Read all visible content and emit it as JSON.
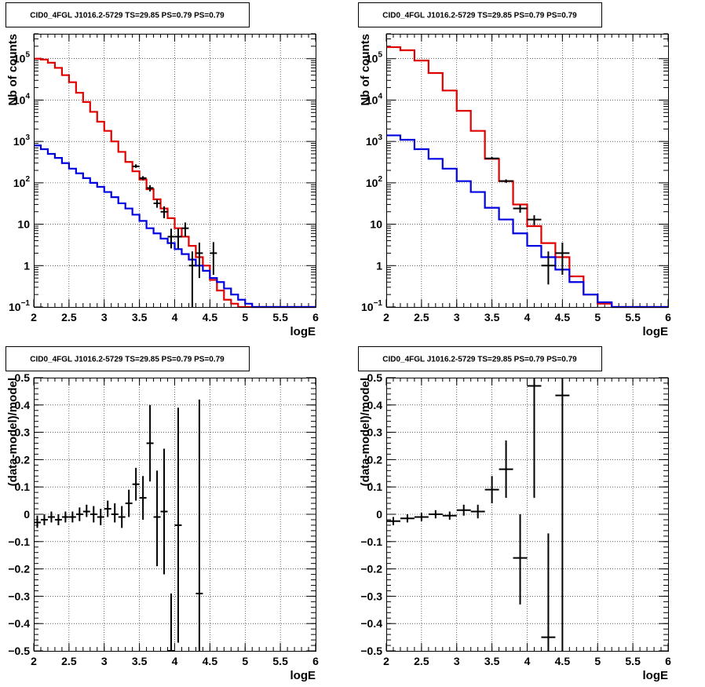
{
  "colors": {
    "model_total": "#e00000",
    "model_source": "#0000e0",
    "data": "#000000"
  },
  "chart_data": [
    {
      "panel": "top-left",
      "type": "line",
      "title": "CID0_4FGL J1016.2-5729 TS=29.85 PS=0.79 PS=0.79",
      "xlabel": "logE",
      "ylabel": "Nb of counts",
      "xlim": [
        2,
        6
      ],
      "ylim": [
        0.1,
        400000
      ],
      "yscale": "log",
      "grid": true,
      "xticks": [
        "2",
        "2.5",
        "3",
        "3.5",
        "4",
        "4.5",
        "5",
        "5.5",
        "6"
      ],
      "yticks": [
        {
          "v": 0.1,
          "base": "10",
          "exp": "−1"
        },
        {
          "v": 1,
          "base": "1",
          "exp": ""
        },
        {
          "v": 10,
          "base": "10",
          "exp": ""
        },
        {
          "v": 100,
          "base": "10",
          "exp": "2"
        },
        {
          "v": 1000,
          "base": "10",
          "exp": "3"
        },
        {
          "v": 10000,
          "base": "10",
          "exp": "4"
        },
        {
          "v": 100000,
          "base": "10",
          "exp": "5"
        }
      ],
      "bin_edges": [
        2.0,
        2.1,
        2.2,
        2.3,
        2.4,
        2.5,
        2.6,
        2.7,
        2.8,
        2.9,
        3.0,
        3.1,
        3.2,
        3.3,
        3.4,
        3.5,
        3.6,
        3.7,
        3.8,
        3.9,
        4.0,
        4.1,
        4.2,
        4.3,
        4.4,
        4.5,
        4.6,
        4.7,
        4.8,
        4.9,
        5.0,
        5.1,
        5.2,
        5.3,
        5.4,
        5.5,
        5.6,
        5.7,
        5.8,
        5.9,
        6.0
      ],
      "series": [
        {
          "role": "model_total",
          "values": [
            100000,
            95000,
            80000,
            60000,
            40000,
            27000,
            15000,
            9000,
            5200,
            3000,
            1800,
            1000,
            560,
            320,
            190,
            120,
            70,
            40,
            24,
            14,
            8,
            5,
            3,
            1.6,
            1.0,
            0.45,
            0.25,
            0.15,
            0.12,
            0.1,
            0.1,
            0.1,
            0.1,
            0.1,
            0.1,
            0.1,
            0.1,
            0.1,
            0.1,
            0.1
          ]
        },
        {
          "role": "model_source",
          "values": [
            800,
            650,
            500,
            400,
            300,
            220,
            170,
            130,
            100,
            80,
            60,
            45,
            32,
            24,
            17,
            12,
            8,
            6,
            4.5,
            3.5,
            2.5,
            1.9,
            1.4,
            1.0,
            0.75,
            0.5,
            0.4,
            0.28,
            0.2,
            0.15,
            0.12,
            0.1,
            0.1,
            0.1,
            0.1,
            0.1,
            0.1,
            0.1,
            0.1,
            0.1
          ]
        }
      ],
      "data_points": [
        {
          "x": 3.45,
          "y": 250,
          "ylo": 230,
          "yhi": 280,
          "xerr": 0.05
        },
        {
          "x": 3.55,
          "y": 130,
          "ylo": 115,
          "yhi": 145,
          "xerr": 0.05
        },
        {
          "x": 3.65,
          "y": 75,
          "ylo": 62,
          "yhi": 88,
          "xerr": 0.05
        },
        {
          "x": 3.75,
          "y": 32,
          "ylo": 25,
          "yhi": 40,
          "xerr": 0.05
        },
        {
          "x": 3.85,
          "y": 20,
          "ylo": 14,
          "yhi": 27,
          "xerr": 0.05
        },
        {
          "x": 3.95,
          "y": 5,
          "ylo": 2.6,
          "yhi": 7.8,
          "xerr": 0.05
        },
        {
          "x": 4.05,
          "y": 5,
          "ylo": 2.6,
          "yhi": 7.8,
          "xerr": 0.05
        },
        {
          "x": 4.15,
          "y": 8,
          "ylo": 5,
          "yhi": 11,
          "xerr": 0.05
        },
        {
          "x": 4.25,
          "y": 1,
          "ylo": 0.1,
          "yhi": 2.2,
          "xerr": 0.05
        },
        {
          "x": 4.35,
          "y": 2,
          "ylo": 0.5,
          "yhi": 3.6,
          "xerr": 0.05
        },
        {
          "x": 4.55,
          "y": 2,
          "ylo": 0.6,
          "yhi": 3.7,
          "xerr": 0.05
        }
      ]
    },
    {
      "panel": "top-right",
      "type": "line",
      "title": "CID0_4FGL J1016.2-5729 TS=29.85 PS=0.79 PS=0.79",
      "xlabel": "logE",
      "ylabel": "Nb of counts",
      "xlim": [
        2,
        6
      ],
      "ylim": [
        0.1,
        400000
      ],
      "yscale": "log",
      "grid": true,
      "xticks": [
        "2",
        "2.5",
        "3",
        "3.5",
        "4",
        "4.5",
        "5",
        "5.5",
        "6"
      ],
      "yticks": [
        {
          "v": 0.1,
          "base": "10",
          "exp": "−1"
        },
        {
          "v": 1,
          "base": "1",
          "exp": ""
        },
        {
          "v": 10,
          "base": "10",
          "exp": ""
        },
        {
          "v": 100,
          "base": "10",
          "exp": "2"
        },
        {
          "v": 1000,
          "base": "10",
          "exp": "3"
        },
        {
          "v": 10000,
          "base": "10",
          "exp": "4"
        },
        {
          "v": 100000,
          "base": "10",
          "exp": "5"
        }
      ],
      "bin_edges": [
        2.0,
        2.2,
        2.4,
        2.6,
        2.8,
        3.0,
        3.2,
        3.4,
        3.6,
        3.8,
        4.0,
        4.2,
        4.4,
        4.6,
        4.8,
        5.0,
        5.2,
        5.4,
        5.6,
        5.8,
        6.0
      ],
      "series": [
        {
          "role": "model_total",
          "values": [
            190000,
            160000,
            90000,
            45000,
            17000,
            5500,
            1800,
            380,
            110,
            30,
            9,
            3.5,
            1.6,
            0.55,
            0.2,
            0.12,
            0.1,
            0.1,
            0.1,
            0.1
          ]
        },
        {
          "role": "model_source",
          "values": [
            1400,
            1100,
            650,
            380,
            220,
            110,
            60,
            25,
            13,
            6,
            3,
            1.6,
            0.8,
            0.4,
            0.2,
            0.13,
            0.1,
            0.1,
            0.1,
            0.1
          ]
        }
      ],
      "data_points": [
        {
          "x": 3.5,
          "y": 390,
          "ylo": 370,
          "yhi": 420,
          "xerr": 0.1
        },
        {
          "x": 3.7,
          "y": 110,
          "ylo": 100,
          "yhi": 121,
          "xerr": 0.1
        },
        {
          "x": 3.9,
          "y": 24,
          "ylo": 19,
          "yhi": 29,
          "xerr": 0.1
        },
        {
          "x": 4.1,
          "y": 13,
          "ylo": 9.5,
          "yhi": 16.5,
          "xerr": 0.1
        },
        {
          "x": 4.3,
          "y": 1,
          "ylo": 0.35,
          "yhi": 2.2,
          "xerr": 0.1
        },
        {
          "x": 4.5,
          "y": 2,
          "ylo": 0.6,
          "yhi": 3.6,
          "xerr": 0.1
        }
      ]
    },
    {
      "panel": "bottom-left",
      "type": "scatter",
      "title": "CID0_4FGL J1016.2-5729 TS=29.85 PS=0.79 PS=0.79",
      "xlabel": "logE",
      "ylabel": "(data-model)/model",
      "xlim": [
        2,
        6
      ],
      "ylim": [
        -0.5,
        0.5
      ],
      "grid": true,
      "xticks": [
        "2",
        "2.5",
        "3",
        "3.5",
        "4",
        "4.5",
        "5",
        "5.5",
        "6"
      ],
      "yticks": [
        "−0.5",
        "−0.4",
        "−0.3",
        "−0.2",
        "−0.1",
        "0",
        "0.1",
        "0.2",
        "0.3",
        "0.4",
        "0.5"
      ],
      "data_points": [
        {
          "x": 2.05,
          "y": -0.03,
          "ylo": -0.05,
          "yhi": -0.005,
          "xerr": 0.05
        },
        {
          "x": 2.15,
          "y": -0.02,
          "ylo": -0.04,
          "yhi": 0.0,
          "xerr": 0.05
        },
        {
          "x": 2.25,
          "y": -0.01,
          "ylo": -0.03,
          "yhi": 0.01,
          "xerr": 0.05
        },
        {
          "x": 2.35,
          "y": -0.02,
          "ylo": -0.04,
          "yhi": 0.0,
          "xerr": 0.05
        },
        {
          "x": 2.45,
          "y": -0.01,
          "ylo": -0.03,
          "yhi": 0.01,
          "xerr": 0.05
        },
        {
          "x": 2.55,
          "y": -0.01,
          "ylo": -0.03,
          "yhi": 0.01,
          "xerr": 0.05
        },
        {
          "x": 2.65,
          "y": 0.0,
          "ylo": -0.025,
          "yhi": 0.025,
          "xerr": 0.05
        },
        {
          "x": 2.75,
          "y": 0.01,
          "ylo": -0.01,
          "yhi": 0.035,
          "xerr": 0.05
        },
        {
          "x": 2.85,
          "y": 0.0,
          "ylo": -0.03,
          "yhi": 0.03,
          "xerr": 0.05
        },
        {
          "x": 2.95,
          "y": -0.01,
          "ylo": -0.04,
          "yhi": 0.02,
          "xerr": 0.05
        },
        {
          "x": 3.05,
          "y": 0.02,
          "ylo": -0.01,
          "yhi": 0.05,
          "xerr": 0.05
        },
        {
          "x": 3.15,
          "y": 0.0,
          "ylo": -0.03,
          "yhi": 0.04,
          "xerr": 0.05
        },
        {
          "x": 3.25,
          "y": -0.01,
          "ylo": -0.05,
          "yhi": 0.03,
          "xerr": 0.05
        },
        {
          "x": 3.35,
          "y": 0.04,
          "ylo": -0.01,
          "yhi": 0.09,
          "xerr": 0.05
        },
        {
          "x": 3.45,
          "y": 0.11,
          "ylo": 0.05,
          "yhi": 0.17,
          "xerr": 0.05
        },
        {
          "x": 3.55,
          "y": 0.06,
          "ylo": -0.02,
          "yhi": 0.14,
          "xerr": 0.05
        },
        {
          "x": 3.65,
          "y": 0.26,
          "ylo": 0.12,
          "yhi": 0.4,
          "xerr": 0.05
        },
        {
          "x": 3.75,
          "y": -0.01,
          "ylo": -0.19,
          "yhi": 0.16,
          "xerr": 0.05
        },
        {
          "x": 3.85,
          "y": 0.01,
          "ylo": -0.22,
          "yhi": 0.24,
          "xerr": 0.05
        },
        {
          "x": 3.95,
          "y": -0.5,
          "ylo": -0.5,
          "yhi": -0.29,
          "xerr": 0.05
        },
        {
          "x": 4.05,
          "y": -0.04,
          "ylo": -0.47,
          "yhi": 0.39,
          "xerr": 0.05
        },
        {
          "x": 4.35,
          "y": -0.29,
          "ylo": -0.5,
          "yhi": 0.42,
          "xerr": 0.05
        }
      ]
    },
    {
      "panel": "bottom-right",
      "type": "scatter",
      "title": "CID0_4FGL J1016.2-5729 TS=29.85 PS=0.79 PS=0.79",
      "xlabel": "logE",
      "ylabel": "(data-model)/model",
      "xlim": [
        2,
        6
      ],
      "ylim": [
        -0.5,
        0.5
      ],
      "grid": true,
      "xticks": [
        "2",
        "2.5",
        "3",
        "3.5",
        "4",
        "4.5",
        "5",
        "5.5",
        "6"
      ],
      "yticks": [
        "−0.5",
        "−0.4",
        "−0.3",
        "−0.2",
        "−0.1",
        "0",
        "0.1",
        "0.2",
        "0.3",
        "0.4",
        "0.5"
      ],
      "data_points": [
        {
          "x": 2.1,
          "y": -0.025,
          "ylo": -0.04,
          "yhi": -0.01,
          "xerr": 0.1
        },
        {
          "x": 2.3,
          "y": -0.015,
          "ylo": -0.03,
          "yhi": 0.0,
          "xerr": 0.1
        },
        {
          "x": 2.5,
          "y": -0.01,
          "ylo": -0.025,
          "yhi": 0.005,
          "xerr": 0.1
        },
        {
          "x": 2.7,
          "y": 0.0,
          "ylo": -0.015,
          "yhi": 0.015,
          "xerr": 0.1
        },
        {
          "x": 2.9,
          "y": -0.005,
          "ylo": -0.02,
          "yhi": 0.01,
          "xerr": 0.1
        },
        {
          "x": 3.1,
          "y": 0.015,
          "ylo": -0.005,
          "yhi": 0.035,
          "xerr": 0.1
        },
        {
          "x": 3.3,
          "y": 0.01,
          "ylo": -0.015,
          "yhi": 0.035,
          "xerr": 0.1
        },
        {
          "x": 3.5,
          "y": 0.09,
          "ylo": 0.04,
          "yhi": 0.14,
          "xerr": 0.1
        },
        {
          "x": 3.7,
          "y": 0.165,
          "ylo": 0.06,
          "yhi": 0.27,
          "xerr": 0.1
        },
        {
          "x": 3.9,
          "y": -0.16,
          "ylo": -0.33,
          "yhi": 0.0,
          "xerr": 0.1
        },
        {
          "x": 4.1,
          "y": 0.47,
          "ylo": 0.06,
          "yhi": 0.5,
          "xerr": 0.1
        },
        {
          "x": 4.3,
          "y": -0.45,
          "ylo": -0.5,
          "yhi": -0.07,
          "xerr": 0.1
        },
        {
          "x": 4.5,
          "y": 0.435,
          "ylo": -0.5,
          "yhi": 0.5,
          "xerr": 0.1
        }
      ]
    }
  ]
}
